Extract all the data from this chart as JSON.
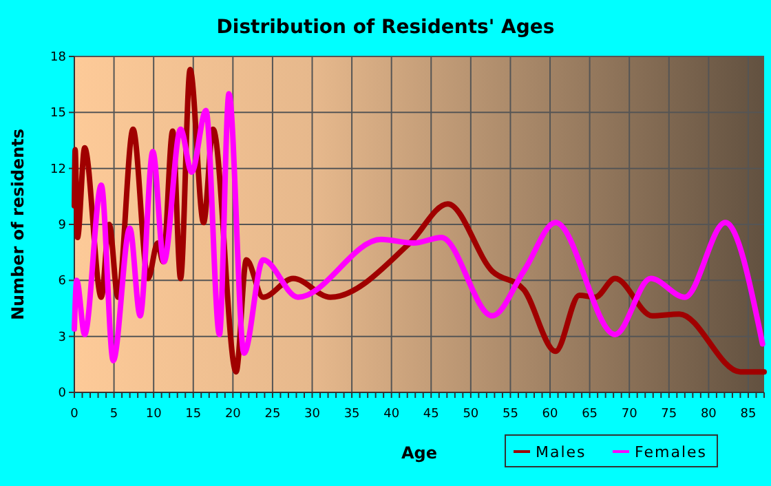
{
  "chart_data": {
    "type": "line",
    "title": "Distribution of Residents' Ages",
    "xlabel": "Age",
    "ylabel": "Number of residents",
    "xlim": [
      0,
      87
    ],
    "xticks": [
      0,
      5,
      10,
      15,
      20,
      25,
      30,
      35,
      40,
      45,
      50,
      55,
      60,
      65,
      70,
      75,
      80,
      85
    ],
    "ylim": [
      0,
      18
    ],
    "yticks": [
      0,
      3,
      6,
      9,
      12,
      15,
      18
    ],
    "grid": true,
    "legend": "bottom right",
    "line_style": "solid",
    "series": [
      {
        "name": "Males",
        "color": "#a00000",
        "x": [
          0,
          0.1,
          0.4,
          1.3,
          3.4,
          4.4,
          5.5,
          7.4,
          9.3,
          10.5,
          11.2,
          12.4,
          13.4,
          14.6,
          16.3,
          17.5,
          20.4,
          21.7,
          23.8,
          27.6,
          32.3,
          42.3,
          47.1,
          52.7,
          56.7,
          60.7,
          63.7,
          65.7,
          68.2,
          72.9,
          76.3,
          84,
          87
        ],
        "values": [
          10,
          13,
          8.3,
          13.1,
          5.1,
          9,
          5.1,
          14.1,
          6.1,
          8,
          7,
          14,
          6.1,
          17.3,
          9.1,
          14.1,
          1.1,
          7.1,
          5.1,
          6.1,
          5.1,
          8,
          10.1,
          6.5,
          5.5,
          2.2,
          5.2,
          5.1,
          6.1,
          4.1,
          4.2,
          1.1,
          1.1
        ]
      },
      {
        "name": "Females",
        "color": "#ff00ff",
        "x": [
          0,
          0.3,
          1.3,
          3.4,
          4.9,
          7,
          8.3,
          9.9,
          11.3,
          13.4,
          14.8,
          16.6,
          18.3,
          19.5,
          21.4,
          23.8,
          28.2,
          38.7,
          42.8,
          46.3,
          52.7,
          56.7,
          60.7,
          68.2,
          72.7,
          77,
          82.1,
          86.8
        ],
        "values": [
          3.4,
          6,
          3.1,
          11.1,
          1.7,
          8.8,
          4.1,
          12.9,
          7,
          14.1,
          11.8,
          15.1,
          3.1,
          16,
          2.1,
          7.1,
          5.1,
          8.2,
          8,
          8.3,
          4.1,
          6.5,
          9.1,
          3.1,
          6.1,
          5.1,
          9.1,
          2.6
        ]
      }
    ]
  }
}
